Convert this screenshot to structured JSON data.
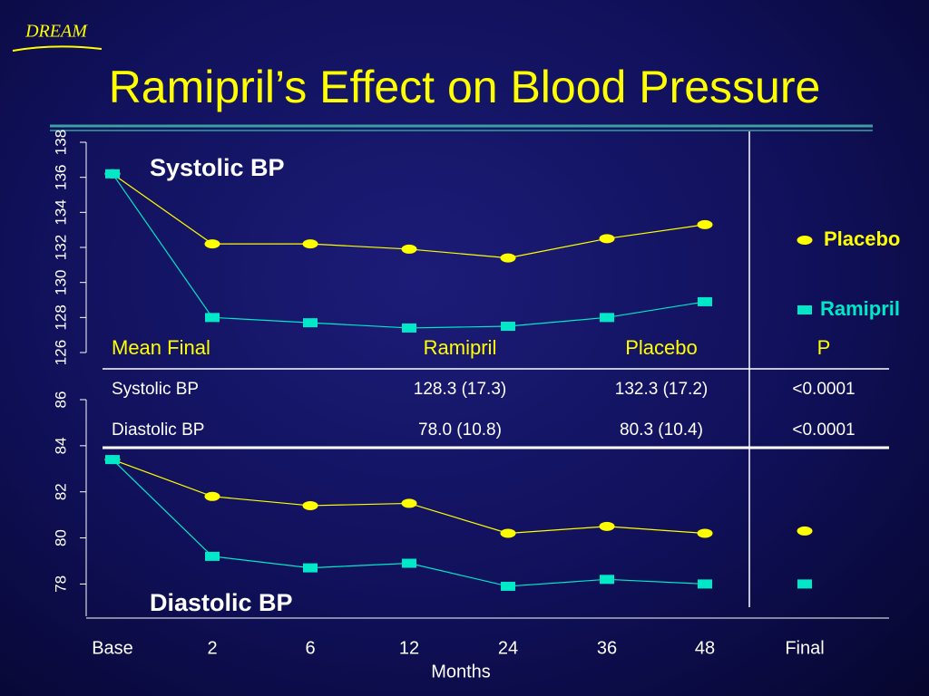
{
  "logo": "DREAM",
  "title": "Ramipril’s Effect on Blood Pressure",
  "x_axis": {
    "categories": [
      "Base",
      "2",
      "6",
      "12",
      "24",
      "36",
      "48",
      "Final"
    ],
    "label": "Months"
  },
  "chart_data": [
    {
      "type": "line",
      "title": "Systolic BP",
      "ylim": [
        126,
        138
      ],
      "yticks": [
        126,
        128,
        130,
        132,
        134,
        136,
        138
      ],
      "series": [
        {
          "name": "Placebo",
          "color": "#ffff00",
          "values": [
            136.2,
            132.2,
            132.2,
            131.9,
            131.4,
            132.5,
            133.3,
            null
          ]
        },
        {
          "name": "Ramipril",
          "color": "#00e8c8",
          "values": [
            136.2,
            128.0,
            127.7,
            127.4,
            127.5,
            128.0,
            128.9,
            null
          ]
        }
      ]
    },
    {
      "type": "line",
      "title": "Diastolic BP",
      "ylim": [
        76.6,
        86
      ],
      "yticks": [
        78,
        80,
        82,
        84,
        86
      ],
      "series": [
        {
          "name": "Placebo",
          "color": "#ffff00",
          "values": [
            83.4,
            81.8,
            81.4,
            81.5,
            80.2,
            80.5,
            80.2,
            80.3
          ]
        },
        {
          "name": "Ramipril",
          "color": "#00e8c8",
          "values": [
            83.4,
            79.2,
            78.7,
            78.9,
            77.9,
            78.2,
            78.0,
            78.0
          ]
        }
      ]
    }
  ],
  "table": {
    "header": [
      "Mean Final",
      "Ramipril",
      "Placebo",
      "P"
    ],
    "rows": [
      [
        "Systolic BP",
        "128.3 (17.3)",
        "132.3 (17.2)",
        "<0.0001"
      ],
      [
        "Diastolic BP",
        "78.0 (10.8)",
        "80.3 (10.4)",
        "<0.0001"
      ]
    ]
  }
}
